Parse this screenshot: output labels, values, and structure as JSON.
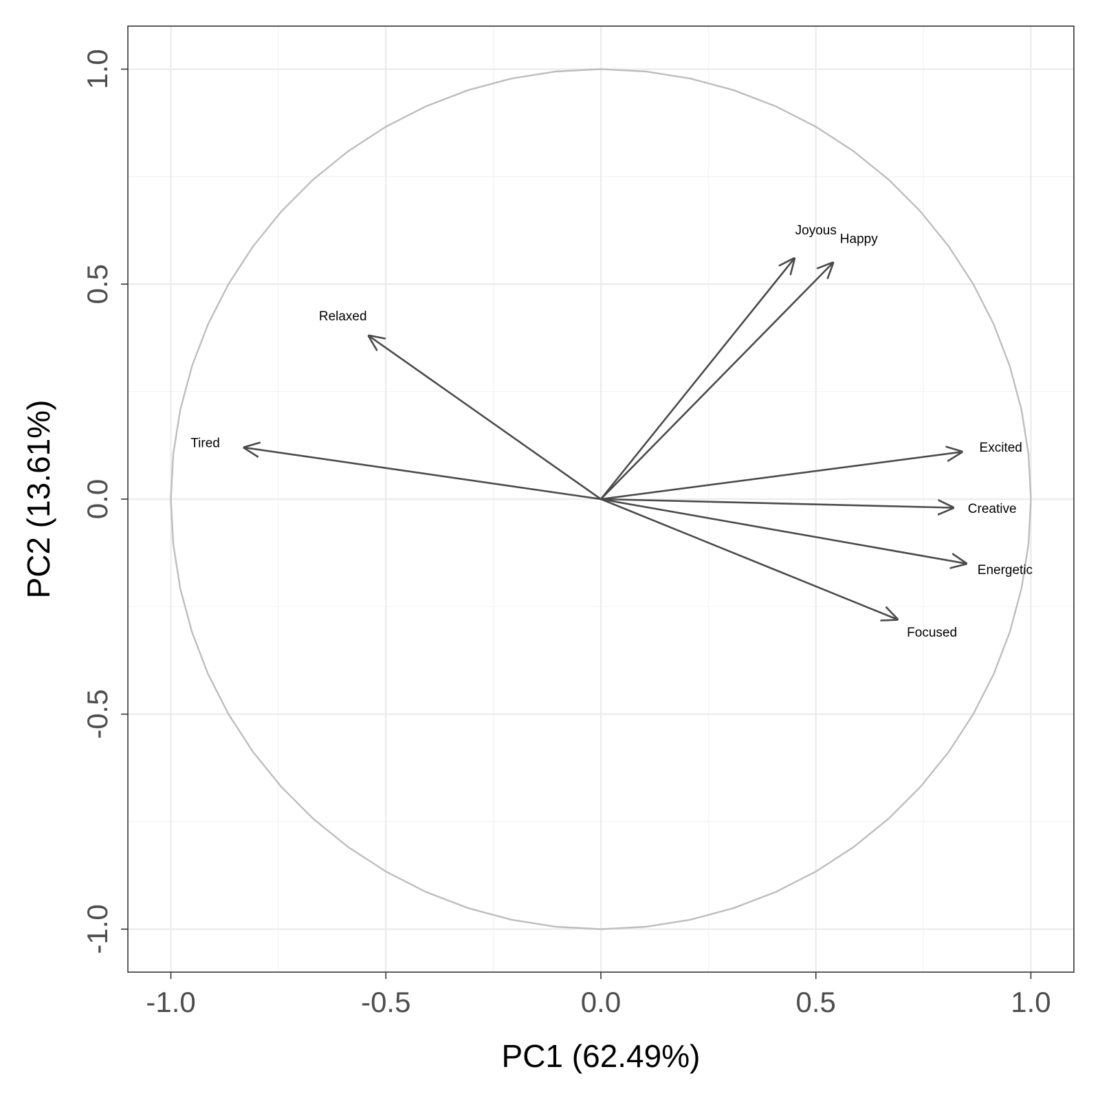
{
  "chart_data": {
    "type": "scatter",
    "subtype": "pca-correlation-circle",
    "title": "",
    "xlabel": "PC1 (62.49%)",
    "ylabel": "PC2 (13.61%)",
    "xlim": [
      -1.1,
      1.1
    ],
    "ylim": [
      -1.1,
      1.1
    ],
    "x_ticks": [
      -1.0,
      -0.5,
      0.0,
      0.5,
      1.0
    ],
    "y_ticks": [
      -1.0,
      -0.5,
      0.0,
      0.5,
      1.0
    ],
    "x_tick_labels": [
      "-1.0",
      "-0.5",
      "0.0",
      "0.5",
      "1.0"
    ],
    "y_tick_labels": [
      "-1.0",
      "-0.5",
      "0.0",
      "0.5",
      "1.0"
    ],
    "grid": true,
    "unit_circle": true,
    "variables": [
      {
        "name": "Joyous",
        "x": 0.45,
        "y": 0.56
      },
      {
        "name": "Happy",
        "x": 0.54,
        "y": 0.55
      },
      {
        "name": "Relaxed",
        "x": -0.54,
        "y": 0.38
      },
      {
        "name": "Tired",
        "x": -0.83,
        "y": 0.12
      },
      {
        "name": "Excited",
        "x": 0.84,
        "y": 0.11
      },
      {
        "name": "Creative",
        "x": 0.82,
        "y": -0.02
      },
      {
        "name": "Energetic",
        "x": 0.85,
        "y": -0.15
      },
      {
        "name": "Focused",
        "x": 0.69,
        "y": -0.28
      }
    ],
    "colors": {
      "arrow": "#4a4a4a",
      "circle": "#bdbdbd",
      "grid": "#ebebeb",
      "border": "#333333"
    }
  }
}
